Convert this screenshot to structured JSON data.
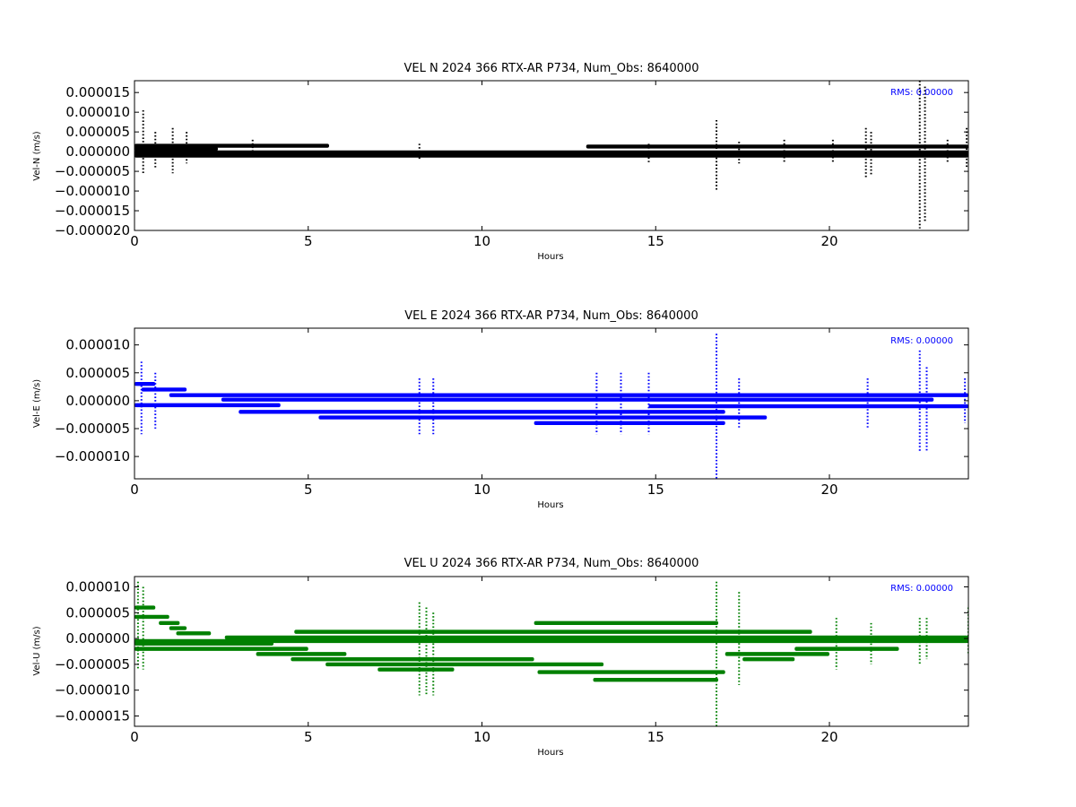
{
  "chart_data": [
    {
      "type": "scatter",
      "title": "VEL N 2024 366 RTX-AR  P734, Num_Obs: 8640000",
      "xlabel": "Hours",
      "ylabel": "Vel-N (m/s)",
      "annotation": "RMS:  0.00000",
      "color": "#000000",
      "annotation_color": "#0000ff",
      "xlim": [
        0,
        24
      ],
      "ylim": [
        -2e-05,
        1.8e-05
      ],
      "x_ticks": [
        "0",
        "5",
        "10",
        "15",
        "20"
      ],
      "y_ticks": [
        "0.000015",
        "0.000010",
        "0.000005",
        "0.000000",
        "−0.000005",
        "−0.000010",
        "−0.000015",
        "−0.000020"
      ],
      "series": [
        {
          "bands": [
            {
              "y": 1.5e-06,
              "x": [
                0,
                5.6
              ]
            },
            {
              "y": 7e-07,
              "x": [
                0,
                2.4
              ]
            },
            {
              "y": -2e-07,
              "x": [
                0,
                24
              ]
            },
            {
              "y": -1e-06,
              "x": [
                0,
                24
              ]
            },
            {
              "y": 1.3e-06,
              "x": [
                13.0,
                24
              ]
            }
          ],
          "spikes": [
            {
              "x": 0.25,
              "ymin": -5.5e-06,
              "ymax": 1.05e-05
            },
            {
              "x": 0.6,
              "ymin": -4e-06,
              "ymax": 5e-06
            },
            {
              "x": 1.1,
              "ymin": -5.5e-06,
              "ymax": 6e-06
            },
            {
              "x": 1.5,
              "ymin": -3e-06,
              "ymax": 5e-06
            },
            {
              "x": 3.4,
              "ymin": -1e-06,
              "ymax": 3e-06
            },
            {
              "x": 8.2,
              "ymin": -2e-06,
              "ymax": 2e-06
            },
            {
              "x": 14.8,
              "ymin": -3e-06,
              "ymax": 2e-06
            },
            {
              "x": 16.75,
              "ymin": -1e-05,
              "ymax": 8e-06
            },
            {
              "x": 17.4,
              "ymin": -3e-06,
              "ymax": 2.5e-06
            },
            {
              "x": 18.7,
              "ymin": -3e-06,
              "ymax": 3e-06
            },
            {
              "x": 20.1,
              "ymin": -3e-06,
              "ymax": 3e-06
            },
            {
              "x": 21.05,
              "ymin": -6.5e-06,
              "ymax": 6e-06
            },
            {
              "x": 21.2,
              "ymin": -6e-06,
              "ymax": 5e-06
            },
            {
              "x": 22.6,
              "ymin": -1.95e-05,
              "ymax": 1.8e-05
            },
            {
              "x": 22.75,
              "ymin": -1.8e-05,
              "ymax": 1.65e-05
            },
            {
              "x": 23.4,
              "ymin": -3e-06,
              "ymax": 3e-06
            },
            {
              "x": 23.95,
              "ymin": -4e-06,
              "ymax": 6e-06
            }
          ]
        }
      ]
    },
    {
      "type": "scatter",
      "title": "VEL E 2024 366 RTX-AR  P734, Num_Obs: 8640000",
      "xlabel": "Hours",
      "ylabel": "Vel-E (m/s)",
      "annotation": "RMS:  0.00000",
      "color": "#0000ff",
      "annotation_color": "#0000ff",
      "xlim": [
        0,
        24
      ],
      "ylim": [
        -1.4e-05,
        1.3e-05
      ],
      "x_ticks": [
        "0",
        "5",
        "10",
        "15",
        "20"
      ],
      "y_ticks": [
        "0.000010",
        "0.000005",
        "0.000000",
        "−0.000005",
        "−0.000010"
      ],
      "series": [
        {
          "bands": [
            {
              "y": 3e-06,
              "x": [
                0,
                0.6
              ]
            },
            {
              "y": 2e-06,
              "x": [
                0.2,
                1.5
              ]
            },
            {
              "y": 1e-06,
              "x": [
                1.0,
                24
              ]
            },
            {
              "y": 2e-07,
              "x": [
                2.5,
                23.0
              ]
            },
            {
              "y": -8e-07,
              "x": [
                0,
                4.2
              ]
            },
            {
              "y": -1e-06,
              "x": [
                14.8,
                24
              ]
            },
            {
              "y": -2e-06,
              "x": [
                3.0,
                17.0
              ]
            },
            {
              "y": -3e-06,
              "x": [
                5.3,
                18.2
              ]
            },
            {
              "y": -4e-06,
              "x": [
                11.5,
                17.0
              ]
            }
          ],
          "spikes": [
            {
              "x": 0.2,
              "ymin": -6e-06,
              "ymax": 7e-06
            },
            {
              "x": 0.6,
              "ymin": -5e-06,
              "ymax": 5e-06
            },
            {
              "x": 8.2,
              "ymin": -6e-06,
              "ymax": 4e-06
            },
            {
              "x": 8.6,
              "ymin": -6e-06,
              "ymax": 4e-06
            },
            {
              "x": 13.3,
              "ymin": -6e-06,
              "ymax": 5e-06
            },
            {
              "x": 14.0,
              "ymin": -6e-06,
              "ymax": 5e-06
            },
            {
              "x": 14.8,
              "ymin": -6e-06,
              "ymax": 5e-06
            },
            {
              "x": 16.75,
              "ymin": -1.4e-05,
              "ymax": 1.2e-05
            },
            {
              "x": 17.4,
              "ymin": -5e-06,
              "ymax": 4e-06
            },
            {
              "x": 21.1,
              "ymin": -5e-06,
              "ymax": 4e-06
            },
            {
              "x": 22.6,
              "ymin": -9e-06,
              "ymax": 9e-06
            },
            {
              "x": 22.8,
              "ymin": -9e-06,
              "ymax": 6e-06
            },
            {
              "x": 23.9,
              "ymin": -4e-06,
              "ymax": 4e-06
            }
          ]
        }
      ]
    },
    {
      "type": "scatter",
      "title": "VEL U 2024 366 RTX-AR  P734, Num_Obs: 8640000",
      "xlabel": "Hours",
      "ylabel": "Vel-U (m/s)",
      "annotation": "RMS:  0.00000",
      "color": "#008000",
      "annotation_color": "#0000ff",
      "xlim": [
        0,
        24
      ],
      "ylim": [
        -1.7e-05,
        1.2e-05
      ],
      "x_ticks": [
        "0",
        "5",
        "10",
        "15",
        "20"
      ],
      "y_ticks": [
        "0.000010",
        "0.000005",
        "0.000000",
        "−0.000005",
        "−0.000010",
        "−0.000015"
      ],
      "series": [
        {
          "bands": [
            {
              "y": 6e-06,
              "x": [
                0,
                0.6
              ]
            },
            {
              "y": 4.2e-06,
              "x": [
                0,
                1.0
              ]
            },
            {
              "y": 3e-06,
              "x": [
                0.7,
                1.3
              ]
            },
            {
              "y": 2e-06,
              "x": [
                1.0,
                1.5
              ]
            },
            {
              "y": 1e-06,
              "x": [
                1.2,
                2.2
              ]
            },
            {
              "y": 2e-07,
              "x": [
                2.6,
                24
              ]
            },
            {
              "y": -5e-07,
              "x": [
                0,
                24
              ]
            },
            {
              "y": -1e-06,
              "x": [
                0,
                4.0
              ]
            },
            {
              "y": -2e-06,
              "x": [
                0,
                5.0
              ]
            },
            {
              "y": -3e-06,
              "x": [
                3.5,
                6.1
              ]
            },
            {
              "y": -4e-06,
              "x": [
                4.5,
                11.5
              ]
            },
            {
              "y": -5e-06,
              "x": [
                5.5,
                13.5
              ]
            },
            {
              "y": -6e-06,
              "x": [
                7.0,
                9.2
              ]
            },
            {
              "y": -6.5e-06,
              "x": [
                11.6,
                17.0
              ]
            },
            {
              "y": -8e-06,
              "x": [
                13.2,
                16.8
              ]
            },
            {
              "y": 1.3e-06,
              "x": [
                4.6,
                19.5
              ]
            },
            {
              "y": 3e-06,
              "x": [
                11.5,
                16.8
              ]
            },
            {
              "y": -3e-06,
              "x": [
                17.0,
                20.0
              ]
            },
            {
              "y": -2e-06,
              "x": [
                19.0,
                22.0
              ]
            },
            {
              "y": -4e-06,
              "x": [
                17.5,
                19.0
              ]
            }
          ],
          "spikes": [
            {
              "x": 0.1,
              "ymin": -6e-06,
              "ymax": 1.1e-05
            },
            {
              "x": 0.25,
              "ymin": -6e-06,
              "ymax": 1e-05
            },
            {
              "x": 8.2,
              "ymin": -1.1e-05,
              "ymax": 7e-06
            },
            {
              "x": 8.4,
              "ymin": -1.1e-05,
              "ymax": 6e-06
            },
            {
              "x": 8.6,
              "ymin": -1.1e-05,
              "ymax": 5e-06
            },
            {
              "x": 16.75,
              "ymin": -1.7e-05,
              "ymax": 1.1e-05
            },
            {
              "x": 17.4,
              "ymin": -9e-06,
              "ymax": 9e-06
            },
            {
              "x": 20.2,
              "ymin": -6e-06,
              "ymax": 4e-06
            },
            {
              "x": 21.2,
              "ymin": -5e-06,
              "ymax": 3e-06
            },
            {
              "x": 22.6,
              "ymin": -5e-06,
              "ymax": 4e-06
            },
            {
              "x": 22.8,
              "ymin": -4e-06,
              "ymax": 4e-06
            },
            {
              "x": 24.0,
              "ymin": -3e-06,
              "ymax": 6e-06
            }
          ]
        }
      ]
    }
  ]
}
